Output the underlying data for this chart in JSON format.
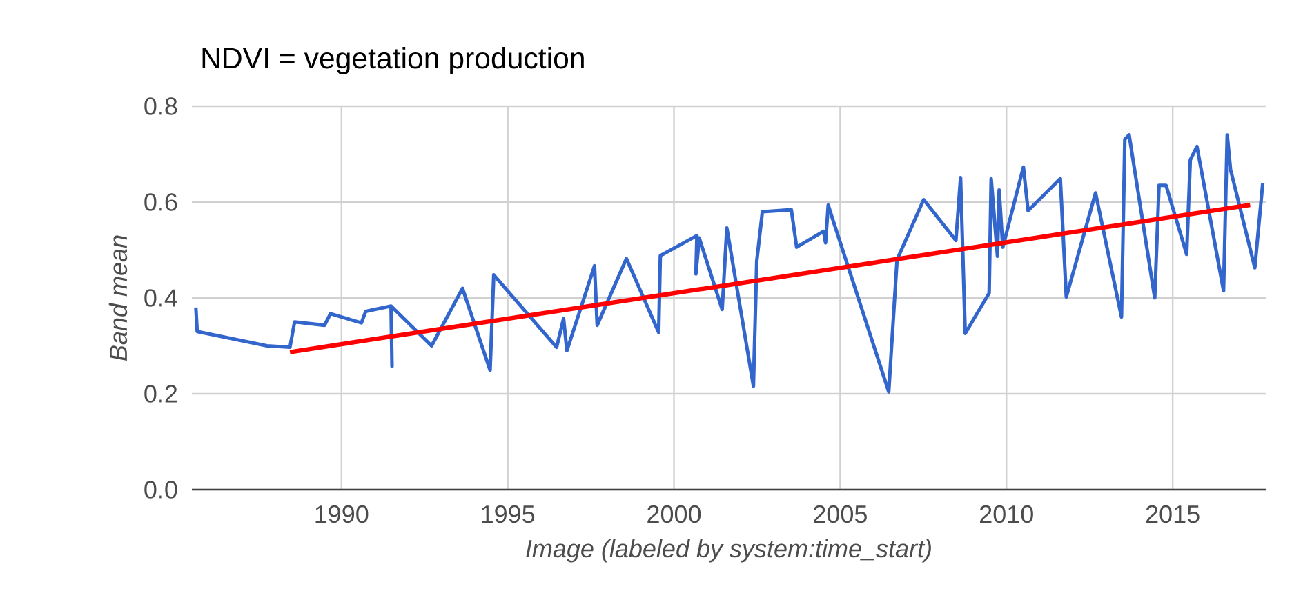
{
  "chart_data": {
    "type": "line",
    "title": "NDVI = vegetation production",
    "xlabel": "Image (labeled by system:time_start)",
    "ylabel": "Band mean",
    "xlim": [
      1985.5,
      2017.8
    ],
    "xticks": [
      1990,
      1995,
      2000,
      2005,
      2010,
      2015
    ],
    "ylim": [
      0,
      0.8
    ],
    "yticks": [
      {
        "value": 0,
        "label": "0.0"
      },
      0.2,
      0.4,
      0.6,
      0.8
    ],
    "grid": true,
    "series": [
      {
        "color": "#3366cc",
        "x": [
          1985.62,
          1985.66,
          1987.76,
          1988.45,
          1988.59,
          1989.49,
          1989.67,
          1990.6,
          1990.73,
          1991.49,
          1991.52,
          1991.49,
          1992.71,
          1993.64,
          1994.47,
          1994.58,
          1996.47,
          1996.68,
          1996.78,
          1997.61,
          1997.69,
          1998.57,
          1999.54,
          1999.59,
          2000.69,
          2000.66,
          2000.76,
          2001.45,
          2001.59,
          2002.39,
          2002.49,
          2002.66,
          2003.53,
          2003.69,
          2004.5,
          2004.56,
          2004.64,
          2004.77,
          2006.46,
          2006.71,
          2007.51,
          2008.48,
          2008.62,
          2008.76,
          2009.48,
          2009.54,
          2009.73,
          2009.78,
          2009.89,
          2010.51,
          2010.65,
          2011.62,
          2011.8,
          2012.68,
          2013.46,
          2013.56,
          2013.69,
          2014.46,
          2014.59,
          2014.8,
          2015.42,
          2015.53,
          2015.73,
          2016.53,
          2016.64,
          2016.74,
          2017.47,
          2017.71
        ],
        "values": [
          0.38,
          0.33,
          0.3,
          0.297,
          0.35,
          0.343,
          0.367,
          0.348,
          0.372,
          0.383,
          0.257,
          0.383,
          0.3,
          0.42,
          0.249,
          0.448,
          0.297,
          0.357,
          0.29,
          0.467,
          0.343,
          0.482,
          0.328,
          0.488,
          0.53,
          0.45,
          0.525,
          0.376,
          0.546,
          0.216,
          0.477,
          0.58,
          0.584,
          0.506,
          0.539,
          0.515,
          0.594,
          0.565,
          0.204,
          0.48,
          0.605,
          0.52,
          0.651,
          0.326,
          0.41,
          0.649,
          0.487,
          0.625,
          0.506,
          0.673,
          0.582,
          0.649,
          0.402,
          0.619,
          0.36,
          0.731,
          0.74,
          0.4,
          0.635,
          0.635,
          0.491,
          0.688,
          0.716,
          0.415,
          0.74,
          0.668,
          0.463,
          0.64
        ]
      },
      {
        "type": "line",
        "color": "#ff0000",
        "x": [
          1988.45,
          2017.33
        ],
        "values": [
          0.287,
          0.594
        ]
      }
    ]
  }
}
